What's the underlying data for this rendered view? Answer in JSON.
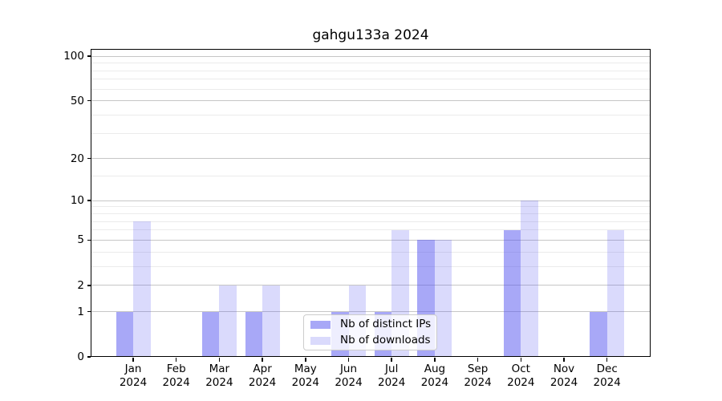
{
  "title": "gahgu133a 2024",
  "chart_data": {
    "type": "bar",
    "title": "gahgu133a 2024",
    "categories": [
      "Jan 2024",
      "Feb 2024",
      "Mar 2024",
      "Apr 2024",
      "May 2024",
      "Jun 2024",
      "Jul 2024",
      "Aug 2024",
      "Sep 2024",
      "Oct 2024",
      "Nov 2024",
      "Dec 2024"
    ],
    "series": [
      {
        "name": "Nb of distinct IPs",
        "color": "rgba(85,85,240,0.51)",
        "values": [
          1,
          0,
          1,
          1,
          0,
          1,
          1,
          5,
          0,
          6,
          0,
          1
        ]
      },
      {
        "name": "Nb of downloads",
        "color": "rgba(85,85,240,0.22)",
        "values": [
          7,
          0,
          2,
          2,
          0,
          2,
          6,
          5,
          0,
          10,
          0,
          6
        ]
      }
    ],
    "xlabel": "",
    "ylabel": "",
    "yscale": "log1p",
    "major_yticks": [
      0,
      1,
      2,
      5,
      10,
      20,
      50,
      100
    ],
    "ytick_labels": [
      "0",
      "1",
      "2",
      "5",
      "10",
      "20",
      "50",
      "100"
    ],
    "minor_yticks": [
      3,
      4,
      6,
      7,
      8,
      9,
      15,
      30,
      40,
      60,
      70,
      80,
      90
    ],
    "ylim": [
      0,
      112
    ],
    "grid": true,
    "legend_position": "lower center"
  },
  "x_axis": {
    "months": [
      {
        "label": "Jan",
        "year": "2024"
      },
      {
        "label": "Feb",
        "year": "2024"
      },
      {
        "label": "Mar",
        "year": "2024"
      },
      {
        "label": "Apr",
        "year": "2024"
      },
      {
        "label": "May",
        "year": "2024"
      },
      {
        "label": "Jun",
        "year": "2024"
      },
      {
        "label": "Jul",
        "year": "2024"
      },
      {
        "label": "Aug",
        "year": "2024"
      },
      {
        "label": "Sep",
        "year": "2024"
      },
      {
        "label": "Oct",
        "year": "2024"
      },
      {
        "label": "Nov",
        "year": "2024"
      },
      {
        "label": "Dec",
        "year": "2024"
      }
    ]
  },
  "colors": {
    "bar_distinct_ips": "rgba(85,85,240,0.51)",
    "bar_downloads": "rgba(85,85,240,0.22)",
    "grid_major": "#c6c6c6",
    "grid_minor": "#ebebeb",
    "spine": "#000000",
    "legend_border": "#cccccc"
  }
}
